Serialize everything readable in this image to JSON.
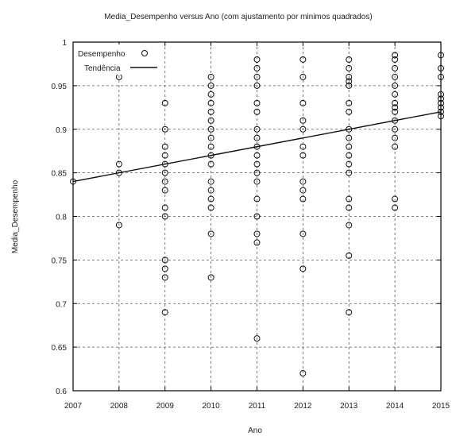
{
  "chart_data": {
    "type": "scatter",
    "title": "Media_Desempenho versus Ano (com ajustamento por minimos quadrados)",
    "xlabel": "Ano",
    "ylabel": "Media_Desempenho",
    "xlim": [
      2007,
      2015
    ],
    "ylim": [
      0.6,
      1.0
    ],
    "x_ticks": [
      "2007",
      "2008",
      "2009",
      "2010",
      "2011",
      "2012",
      "2013",
      "2014",
      "2015"
    ],
    "y_ticks": [
      "0.6",
      "0.65",
      "0.7",
      "0.75",
      "0.8",
      "0.85",
      "0.9",
      "0.95",
      "1"
    ],
    "grid": true,
    "legend_position": "top-left",
    "series": [
      {
        "name": "Desempenho",
        "marker": "circle",
        "points": [
          [
            2007,
            0.84
          ],
          [
            2008,
            0.96
          ],
          [
            2008,
            0.86
          ],
          [
            2008,
            0.85
          ],
          [
            2008,
            0.79
          ],
          [
            2009,
            0.93
          ],
          [
            2009,
            0.9
          ],
          [
            2009,
            0.88
          ],
          [
            2009,
            0.87
          ],
          [
            2009,
            0.86
          ],
          [
            2009,
            0.85
          ],
          [
            2009,
            0.84
          ],
          [
            2009,
            0.83
          ],
          [
            2009,
            0.81
          ],
          [
            2009,
            0.8
          ],
          [
            2009,
            0.75
          ],
          [
            2009,
            0.74
          ],
          [
            2009,
            0.73
          ],
          [
            2009,
            0.69
          ],
          [
            2010,
            0.96
          ],
          [
            2010,
            0.95
          ],
          [
            2010,
            0.94
          ],
          [
            2010,
            0.93
          ],
          [
            2010,
            0.92
          ],
          [
            2010,
            0.91
          ],
          [
            2010,
            0.9
          ],
          [
            2010,
            0.89
          ],
          [
            2010,
            0.88
          ],
          [
            2010,
            0.87
          ],
          [
            2010,
            0.86
          ],
          [
            2010,
            0.84
          ],
          [
            2010,
            0.83
          ],
          [
            2010,
            0.82
          ],
          [
            2010,
            0.81
          ],
          [
            2010,
            0.78
          ],
          [
            2010,
            0.73
          ],
          [
            2011,
            0.98
          ],
          [
            2011,
            0.97
          ],
          [
            2011,
            0.96
          ],
          [
            2011,
            0.95
          ],
          [
            2011,
            0.93
          ],
          [
            2011,
            0.92
          ],
          [
            2011,
            0.9
          ],
          [
            2011,
            0.89
          ],
          [
            2011,
            0.88
          ],
          [
            2011,
            0.87
          ],
          [
            2011,
            0.86
          ],
          [
            2011,
            0.85
          ],
          [
            2011,
            0.84
          ],
          [
            2011,
            0.82
          ],
          [
            2011,
            0.8
          ],
          [
            2011,
            0.78
          ],
          [
            2011,
            0.77
          ],
          [
            2011,
            0.66
          ],
          [
            2012,
            0.98
          ],
          [
            2012,
            0.96
          ],
          [
            2012,
            0.93
          ],
          [
            2012,
            0.91
          ],
          [
            2012,
            0.9
          ],
          [
            2012,
            0.88
          ],
          [
            2012,
            0.87
          ],
          [
            2012,
            0.84
          ],
          [
            2012,
            0.83
          ],
          [
            2012,
            0.82
          ],
          [
            2012,
            0.78
          ],
          [
            2012,
            0.74
          ],
          [
            2012,
            0.62
          ],
          [
            2013,
            0.98
          ],
          [
            2013,
            0.97
          ],
          [
            2013,
            0.96
          ],
          [
            2013,
            0.955
          ],
          [
            2013,
            0.95
          ],
          [
            2013,
            0.93
          ],
          [
            2013,
            0.92
          ],
          [
            2013,
            0.9
          ],
          [
            2013,
            0.89
          ],
          [
            2013,
            0.88
          ],
          [
            2013,
            0.87
          ],
          [
            2013,
            0.86
          ],
          [
            2013,
            0.85
          ],
          [
            2013,
            0.82
          ],
          [
            2013,
            0.81
          ],
          [
            2013,
            0.79
          ],
          [
            2013,
            0.755
          ],
          [
            2013,
            0.69
          ],
          [
            2014,
            0.985
          ],
          [
            2014,
            0.98
          ],
          [
            2014,
            0.97
          ],
          [
            2014,
            0.96
          ],
          [
            2014,
            0.95
          ],
          [
            2014,
            0.94
          ],
          [
            2014,
            0.93
          ],
          [
            2014,
            0.925
          ],
          [
            2014,
            0.92
          ],
          [
            2014,
            0.91
          ],
          [
            2014,
            0.9
          ],
          [
            2014,
            0.89
          ],
          [
            2014,
            0.88
          ],
          [
            2014,
            0.82
          ],
          [
            2014,
            0.81
          ],
          [
            2015,
            0.985
          ],
          [
            2015,
            0.97
          ],
          [
            2015,
            0.96
          ],
          [
            2015,
            0.94
          ],
          [
            2015,
            0.935
          ],
          [
            2015,
            0.93
          ],
          [
            2015,
            0.925
          ],
          [
            2015,
            0.92
          ],
          [
            2015,
            0.915
          ]
        ]
      },
      {
        "name": "Tendência",
        "type": "line",
        "points": [
          [
            2007,
            0.84
          ],
          [
            2015,
            0.92
          ]
        ]
      }
    ]
  }
}
